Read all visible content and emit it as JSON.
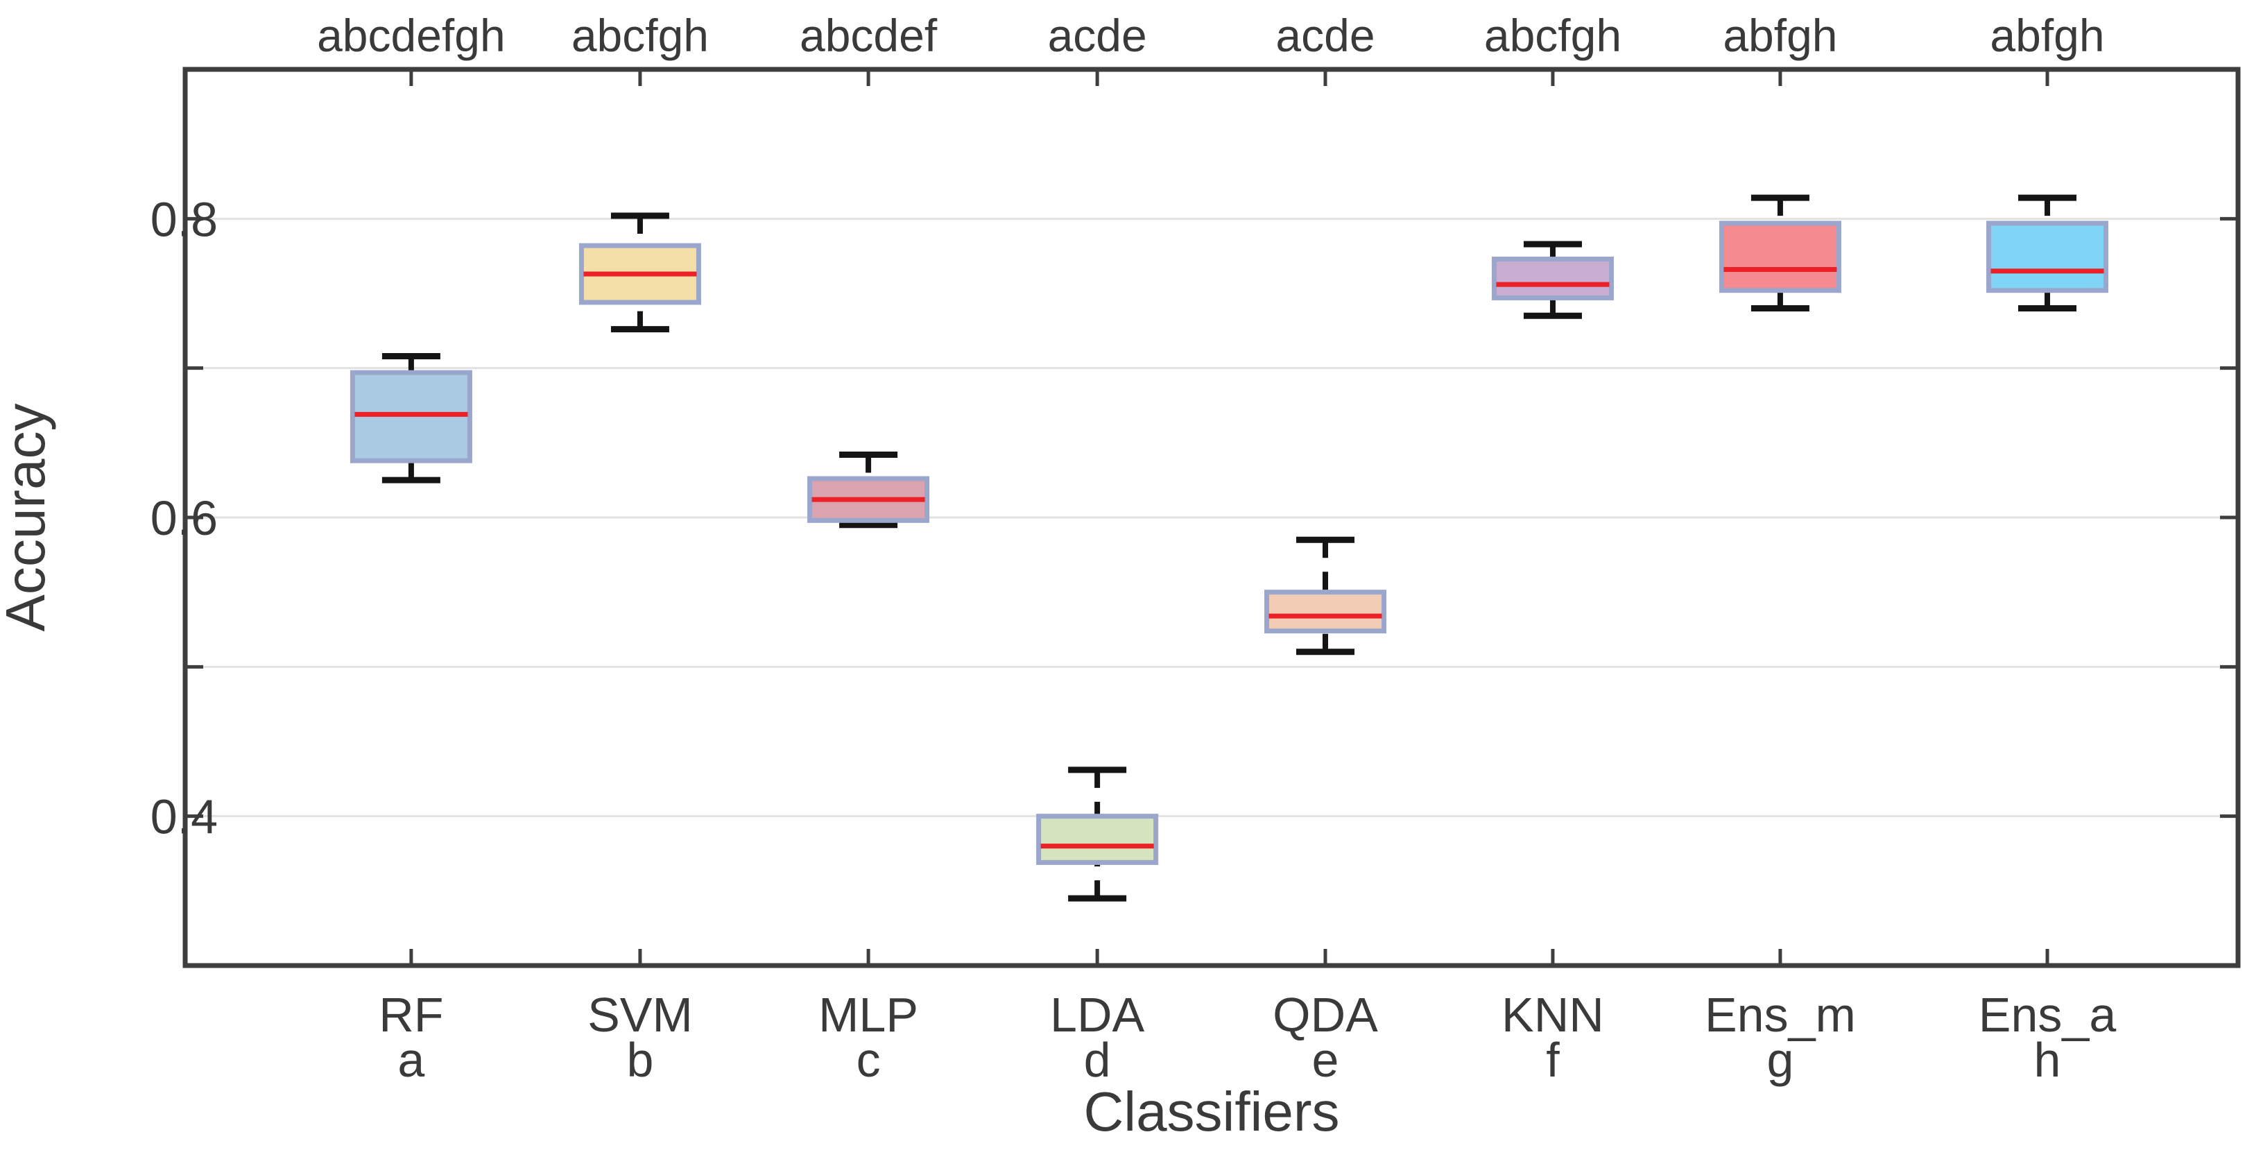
{
  "chart_data": {
    "type": "box",
    "title": "",
    "xlabel": "Classifiers",
    "ylabel": "Accuracy",
    "ylim": [
      0.3,
      0.9
    ],
    "ytick_labels": [
      "0.4",
      "0.6",
      "0.8"
    ],
    "ytick_values": [
      0.4,
      0.6,
      0.8
    ],
    "grid_values": [
      0.4,
      0.5,
      0.6,
      0.7,
      0.8
    ],
    "grid": true,
    "legend_position": "none",
    "categories": [
      "RF",
      "SVM",
      "MLP",
      "LDA",
      "QDA",
      "KNN",
      "Ens_m",
      "Ens_a"
    ],
    "series": [
      {
        "label": "RF",
        "letter": "a",
        "significance": "abcdefgh",
        "x_frac": 0.1101,
        "whisker_low": 0.625,
        "q1": 0.638,
        "median": 0.669,
        "q3": 0.697,
        "whisker_high": 0.708,
        "fill": "#aacbe3"
      },
      {
        "label": "SVM",
        "letter": "b",
        "significance": "abcfgh",
        "x_frac": 0.2216,
        "whisker_low": 0.726,
        "q1": 0.744,
        "median": 0.763,
        "q3": 0.782,
        "whisker_high": 0.802,
        "fill": "#f5dfa9"
      },
      {
        "label": "MLP",
        "letter": "c",
        "significance": "abcdef",
        "x_frac": 0.3328,
        "whisker_low": 0.595,
        "q1": 0.598,
        "median": 0.612,
        "q3": 0.626,
        "whisker_high": 0.642,
        "fill": "#daa3ad"
      },
      {
        "label": "LDA",
        "letter": "d",
        "significance": "acde",
        "x_frac": 0.4443,
        "whisker_low": 0.345,
        "q1": 0.369,
        "median": 0.38,
        "q3": 0.4,
        "whisker_high": 0.431,
        "fill": "#d4e4bd"
      },
      {
        "label": "QDA",
        "letter": "e",
        "significance": "acde",
        "x_frac": 0.5554,
        "whisker_low": 0.51,
        "q1": 0.524,
        "median": 0.534,
        "q3": 0.55,
        "whisker_high": 0.585,
        "fill": "#f3ccb6"
      },
      {
        "label": "KNN",
        "letter": "f",
        "significance": "abcfgh",
        "x_frac": 0.6662,
        "whisker_low": 0.735,
        "q1": 0.747,
        "median": 0.756,
        "q3": 0.773,
        "whisker_high": 0.783,
        "fill": "#c9aed1"
      },
      {
        "label": "Ens_m",
        "letter": "g",
        "significance": "abfgh",
        "x_frac": 0.777,
        "whisker_low": 0.74,
        "q1": 0.752,
        "median": 0.766,
        "q3": 0.797,
        "whisker_high": 0.814,
        "fill": "#f48b90"
      },
      {
        "label": "Ens_a",
        "letter": "h",
        "significance": "abfgh",
        "x_frac": 0.9071,
        "whisker_low": 0.74,
        "q1": 0.752,
        "median": 0.765,
        "q3": 0.797,
        "whisker_high": 0.814,
        "fill": "#80d4f5"
      }
    ],
    "style": {
      "box_edge_color": "#9aa6cc",
      "median_color": "#ec2127",
      "whisker_color": "#141414",
      "grid_color": "#e2e2e2",
      "spine_color": "#3e3e3e",
      "text_color": "#3a3a3a",
      "background": "#ffffff"
    }
  }
}
